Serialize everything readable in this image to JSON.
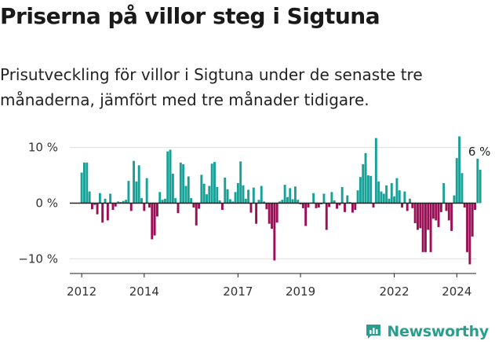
{
  "title": "Priserna på villor steg i Sigtuna",
  "subtitle": "Prisutveckling för villor i Sigtuna under de senaste tre månaderna, jämfört med tre månader tidigare.",
  "brand": {
    "name": "Newsworthy",
    "icon": "newsworthy-logo-icon",
    "color": "#2a9d8f"
  },
  "colors": {
    "positive": "#18a196",
    "negative": "#9b0f56",
    "grid": "#dddddd",
    "axis": "#222222"
  },
  "chart_data": {
    "type": "bar",
    "title": "Priserna på villor steg i Sigtuna",
    "xlabel": "",
    "ylabel": "",
    "unit": "%",
    "ylim": [
      -12.5,
      12.5
    ],
    "yticks": [
      {
        "value": 10,
        "label": "10 %"
      },
      {
        "value": 0,
        "label": "0 %"
      },
      {
        "value": -10,
        "label": "−10 %"
      }
    ],
    "xlim": [
      2011.62,
      2024.62
    ],
    "xticks": [
      {
        "value": 2012,
        "label": "2012"
      },
      {
        "value": 2014,
        "label": "2014"
      },
      {
        "value": 2017,
        "label": "2017"
      },
      {
        "value": 2019,
        "label": "2019"
      },
      {
        "value": 2022,
        "label": "2022"
      },
      {
        "value": 2024,
        "label": "2024"
      }
    ],
    "start": 2012.0,
    "step": 0.08333,
    "values": [
      5.5,
      7.3,
      7.3,
      2.1,
      -1.1,
      -0.3,
      -2.0,
      1.8,
      -3.5,
      0.8,
      -3.1,
      1.7,
      -1.2,
      -0.6,
      0.3,
      0.2,
      0.4,
      0.6,
      4.0,
      -1.4,
      7.6,
      3.9,
      6.8,
      0.9,
      -1.4,
      4.5,
      -0.8,
      -6.5,
      -5.8,
      -2.4,
      2.0,
      0.6,
      0.8,
      9.3,
      9.6,
      5.3,
      0.9,
      -1.8,
      7.3,
      7.0,
      3.1,
      4.8,
      0.9,
      -0.8,
      -4.0,
      -1.0,
      5.1,
      3.5,
      1.6,
      3.1,
      7.1,
      7.4,
      2.9,
      0.5,
      -1.2,
      4.6,
      2.5,
      0.7,
      0.3,
      2.0,
      3.6,
      7.5,
      3.2,
      0.8,
      2.4,
      -1.7,
      2.8,
      -3.7,
      0.6,
      3.1,
      0.3,
      -1.1,
      -3.7,
      -4.6,
      -10.3,
      -3.5,
      0.3,
      0.6,
      3.3,
      1.1,
      2.7,
      0.7,
      3.0,
      0.6,
      -0.2,
      -0.9,
      -4.1,
      -0.8,
      0.1,
      1.8,
      -0.9,
      -0.8,
      -0.2,
      1.7,
      -4.8,
      -0.7,
      2.0,
      0.5,
      -1.0,
      -0.4,
      2.9,
      -1.6,
      1.4,
      0.2,
      -1.7,
      -1.2,
      2.3,
      4.7,
      7.0,
      9.0,
      5.0,
      4.9,
      -0.8,
      11.7,
      3.9,
      2.1,
      1.7,
      3.2,
      0.8,
      3.6,
      1.2,
      4.5,
      2.3,
      -0.8,
      2.1,
      -1.4,
      0.8,
      -0.9,
      -3.6,
      -4.8,
      -4.5,
      -8.8,
      -8.8,
      -4.8,
      -8.8,
      -2.8,
      -3.1,
      -4.3,
      -1.6,
      3.6,
      -1.4,
      -3.1,
      -5.0,
      1.4,
      8.1,
      12.0,
      5.4,
      -0.8,
      -8.8,
      -11.0,
      -6.0,
      -1.2,
      8.0,
      6.0
    ],
    "annotation": {
      "text": "6 %",
      "position": "last-bar"
    }
  }
}
